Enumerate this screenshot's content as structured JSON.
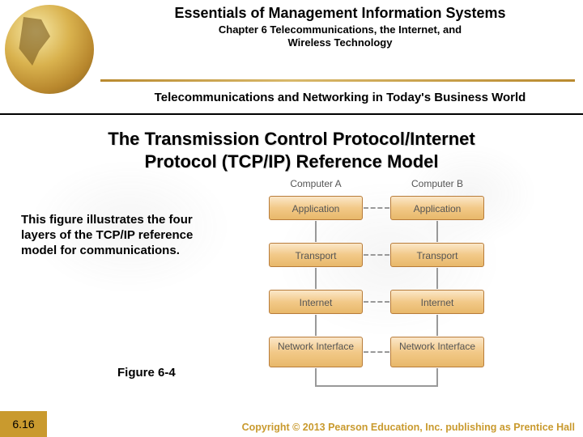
{
  "header": {
    "book_title": "Essentials of Management Information Systems",
    "chapter_line1": "Chapter 6 Telecommunications, the Internet, and",
    "chapter_line2": "Wireless Technology",
    "section_title": "Telecommunications and Networking in Today's Business World"
  },
  "slide": {
    "title_line1": "The Transmission Control Protocol/Internet",
    "title_line2": "Protocol (TCP/IP) Reference Model",
    "caption": "This figure illustrates the four layers of the TCP/IP reference model for communications.",
    "figure_label": "Figure 6-4"
  },
  "diagram": {
    "type": "layered-network",
    "col_a": "Computer A",
    "col_b": "Computer B",
    "layers": [
      "Application",
      "Transport",
      "Internet",
      "Network Interface"
    ],
    "box_fill_top": "#fbe7c9",
    "box_fill_bottom": "#e8b86a",
    "box_border": "#b87c3a",
    "label_color": "#555555",
    "connector_color": "#999999"
  },
  "footer": {
    "page_num": "6.16",
    "copyright": "Copyright © 2013 Pearson Education, Inc. publishing as Prentice Hall"
  },
  "colors": {
    "accent_gold": "#c99a2e",
    "text": "#000000",
    "background": "#ffffff"
  }
}
